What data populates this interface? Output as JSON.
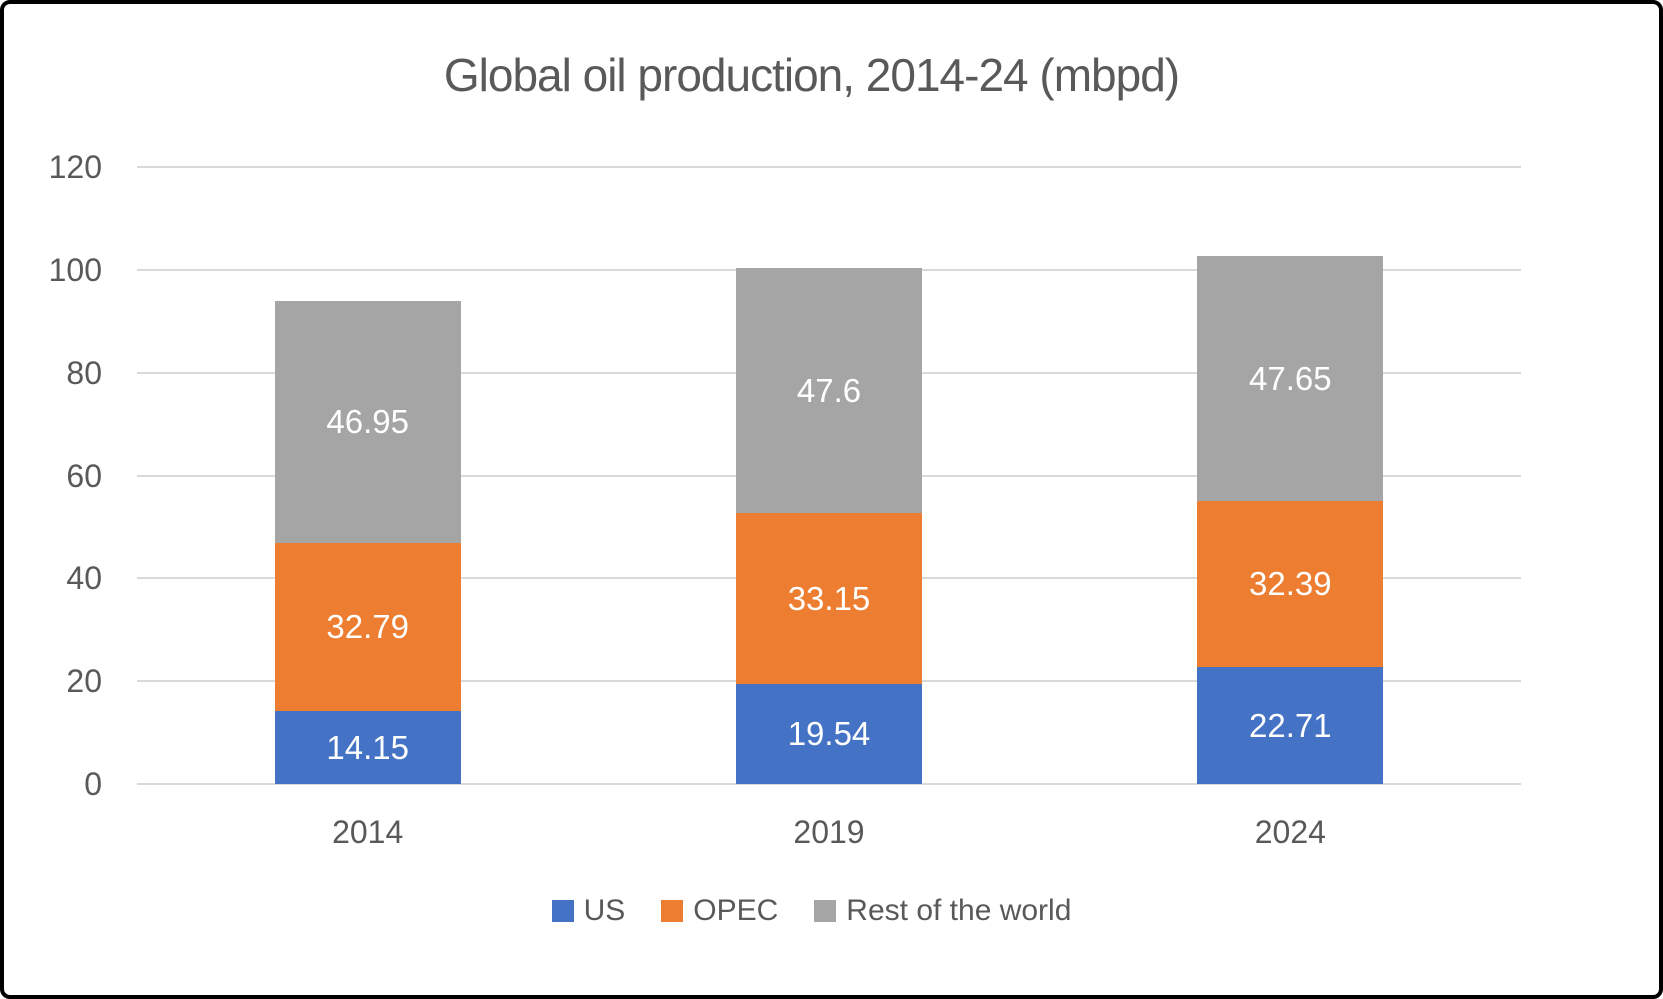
{
  "frame": {
    "background": "#FFFFFF",
    "border_color": "#000000"
  },
  "chart_data": {
    "type": "bar",
    "stacked": true,
    "title": "Global oil production, 2014-24 (mbpd)",
    "categories": [
      "2014",
      "2019",
      "2024"
    ],
    "series": [
      {
        "name": "US",
        "color": "#4472C4",
        "values": [
          14.15,
          19.54,
          22.71
        ],
        "labels": [
          "14.15",
          "19.54",
          "22.71"
        ]
      },
      {
        "name": "OPEC",
        "color": "#ED7D31",
        "values": [
          32.79,
          33.15,
          32.39
        ],
        "labels": [
          "32.79",
          "33.15",
          "32.39"
        ]
      },
      {
        "name": "Rest of the world",
        "color": "#A5A5A5",
        "values": [
          46.95,
          47.6,
          47.65
        ],
        "labels": [
          "46.95",
          "47.6",
          "47.65"
        ]
      }
    ],
    "ylim": [
      0,
      120
    ],
    "yticks": [
      0,
      20,
      40,
      60,
      80,
      100,
      120
    ],
    "grid": true,
    "legend_position": "bottom",
    "colors": {
      "data_label_text": "#FFFFFF",
      "axis_text": "#595959",
      "title_text": "#595959",
      "gridline": "#D9D9D9"
    }
  }
}
